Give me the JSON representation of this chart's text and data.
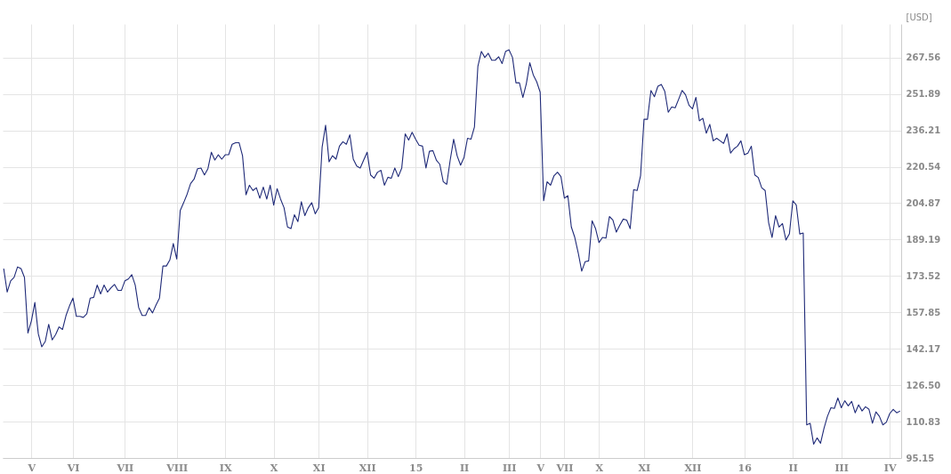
{
  "chart_data": {
    "type": "line",
    "ylabel": "[USD]",
    "color": "#1f2a78",
    "grid": true,
    "ylim": [
      95.15,
      282
    ],
    "yticks": [
      95.15,
      110.83,
      {
        "value": 126.5,
        "label": "126.50"
      },
      142.17,
      157.85,
      173.52,
      189.19,
      204.87,
      220.54,
      236.21,
      251.89,
      267.56
    ],
    "categories": [
      null,
      null,
      null,
      null,
      null,
      null,
      null,
      null,
      "V",
      null,
      null,
      null,
      null,
      null,
      null,
      null,
      null,
      null,
      null,
      null,
      "VI",
      null,
      null,
      null,
      null,
      null,
      null,
      null,
      null,
      null,
      null,
      null,
      null,
      null,
      null,
      "VII",
      null,
      null,
      null,
      null,
      null,
      null,
      null,
      null,
      null,
      null,
      null,
      null,
      null,
      null,
      "VIII",
      null,
      null,
      null,
      null,
      null,
      null,
      null,
      null,
      null,
      null,
      null,
      null,
      null,
      "IX",
      null,
      null,
      null,
      null,
      null,
      null,
      null,
      null,
      null,
      null,
      null,
      null,
      null,
      "X",
      null,
      null,
      null,
      null,
      null,
      null,
      null,
      null,
      null,
      null,
      null,
      null,
      "XI",
      null,
      null,
      null,
      null,
      null,
      null,
      null,
      null,
      null,
      null,
      null,
      null,
      null,
      "XII",
      null,
      null,
      null,
      null,
      null,
      null,
      null,
      null,
      null,
      null,
      null,
      null,
      null,
      "15",
      null,
      null,
      null,
      null,
      null,
      null,
      null,
      null,
      null,
      null,
      null,
      null,
      null,
      "II",
      null,
      null,
      null,
      null,
      null,
      null,
      null,
      null,
      null,
      null,
      null,
      null,
      "III",
      null,
      null,
      null,
      null,
      null,
      null,
      null,
      null,
      "V",
      null,
      null,
      null,
      null,
      null,
      null,
      "VII",
      null,
      null,
      null,
      null,
      null,
      null,
      null,
      null,
      null,
      "X",
      null,
      null,
      null,
      null,
      null,
      null,
      null,
      null,
      null,
      null,
      null,
      null,
      "XI",
      null,
      null,
      null,
      null,
      null,
      null,
      null,
      null,
      null,
      null,
      null,
      null,
      null,
      "XII",
      null,
      null,
      null,
      null,
      null,
      null,
      null,
      null,
      null,
      null,
      null,
      null,
      null,
      null,
      "16",
      null,
      null,
      null,
      null,
      null,
      null,
      null,
      null,
      null,
      null,
      null,
      null,
      null,
      "II",
      null,
      null,
      null,
      null,
      null,
      null,
      null,
      null,
      null,
      null,
      null,
      null,
      null,
      "III",
      null,
      null,
      null,
      null,
      null,
      null,
      null,
      null,
      null,
      null,
      null,
      null,
      null,
      "IV",
      null,
      null,
      null
    ],
    "values": [
      176.7,
      166.6,
      171.4,
      172.9,
      177.4,
      176.7,
      172.9,
      149.0,
      154.2,
      162.1,
      148.6,
      143.0,
      145.3,
      152.7,
      146.0,
      148.3,
      151.6,
      150.5,
      156.5,
      160.6,
      164.0,
      156.1,
      156.1,
      155.7,
      157.2,
      164.0,
      164.3,
      169.6,
      165.8,
      169.6,
      166.6,
      168.4,
      169.9,
      167.3,
      167.3,
      171.4,
      172.2,
      174.1,
      169.6,
      159.9,
      156.5,
      156.5,
      159.9,
      157.6,
      161.0,
      164.0,
      177.8,
      177.8,
      180.4,
      187.5,
      180.8,
      201.7,
      205.1,
      208.8,
      213.3,
      215.2,
      219.7,
      220.0,
      217.0,
      219.7,
      226.8,
      223.4,
      225.7,
      223.8,
      225.7,
      225.7,
      230.2,
      230.9,
      230.9,
      225.3,
      208.5,
      212.6,
      210.3,
      211.5,
      207.0,
      211.8,
      206.6,
      212.6,
      204.0,
      211.1,
      206.6,
      202.9,
      194.6,
      193.9,
      199.9,
      196.9,
      205.5,
      199.5,
      202.9,
      205.1,
      200.3,
      202.9,
      229.0,
      238.4,
      222.7,
      225.3,
      223.8,
      229.4,
      231.3,
      230.2,
      234.3,
      223.8,
      220.8,
      220.0,
      223.4,
      226.8,
      217.0,
      215.6,
      218.2,
      219.0,
      212.6,
      216.0,
      215.6,
      220.0,
      216.3,
      220.0,
      234.7,
      232.0,
      235.4,
      232.4,
      229.8,
      229.4,
      220.0,
      227.2,
      227.5,
      223.4,
      221.6,
      214.1,
      213.0,
      223.4,
      232.4,
      225.3,
      221.2,
      224.6,
      232.8,
      232.4,
      237.6,
      263.8,
      270.2,
      267.6,
      269.4,
      266.4,
      266.4,
      267.9,
      265.0,
      270.2,
      270.9,
      267.6,
      256.7,
      256.7,
      250.4,
      256.3,
      265.3,
      260.1,
      257.1,
      252.6,
      205.9,
      214.1,
      212.6,
      216.7,
      218.2,
      216.3,
      207.0,
      208.1,
      194.6,
      190.1,
      183.4,
      175.6,
      179.7,
      180.0,
      197.3,
      193.9,
      187.9,
      190.1,
      189.8,
      199.1,
      197.6,
      192.4,
      195.4,
      198.0,
      197.6,
      193.9,
      210.7,
      210.3,
      216.7,
      241.0,
      241.0,
      253.4,
      250.7,
      255.2,
      256.0,
      253.0,
      244.0,
      246.3,
      245.9,
      249.6,
      253.4,
      251.5,
      247.0,
      245.5,
      250.4,
      240.3,
      241.4,
      235.0,
      238.8,
      231.7,
      232.8,
      231.7,
      230.6,
      234.7,
      226.4,
      228.3,
      229.4,
      231.7,
      225.7,
      226.4,
      229.4,
      217.0,
      215.9,
      211.5,
      210.3,
      196.5,
      190.1,
      199.5,
      194.6,
      196.1,
      189.0,
      191.6,
      205.9,
      204.0,
      191.6,
      192.0,
      109.4,
      110.1,
      101.1,
      103.8,
      101.5,
      107.9,
      113.1,
      116.8,
      116.5,
      121.0,
      116.8,
      119.8,
      117.6,
      119.5,
      114.6,
      118.0,
      115.4,
      117.2,
      116.1,
      110.1,
      115.0,
      113.1,
      109.4,
      110.5,
      114.3,
      116.1,
      114.6,
      115.4
    ]
  }
}
